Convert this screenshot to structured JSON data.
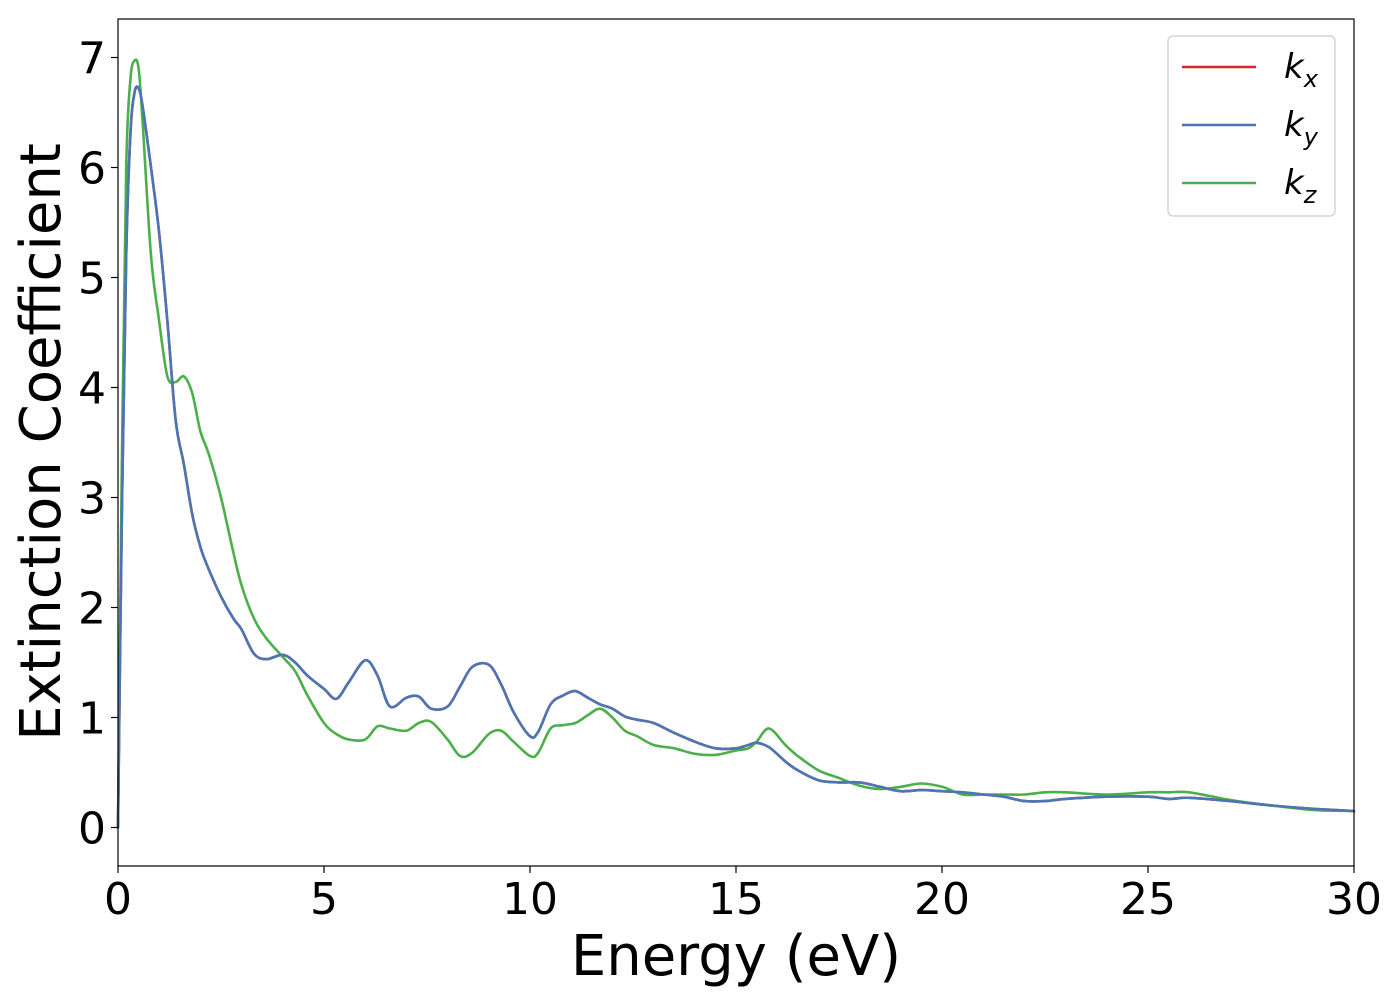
{
  "chart_data": {
    "type": "line",
    "xlabel": "Energy (eV)",
    "ylabel": "Extinction Coefficient",
    "xlim": [
      0,
      30
    ],
    "ylim": [
      -0.35,
      7.35
    ],
    "xticks": [
      0,
      5,
      10,
      15,
      20,
      25,
      30
    ],
    "yticks": [
      0,
      1,
      2,
      3,
      4,
      5,
      6,
      7
    ],
    "grid": false,
    "legend_position": "top-right",
    "series": [
      {
        "name": "k",
        "subscript": "x",
        "color": "#d62728",
        "x": [
          0,
          0.1,
          0.2,
          0.3,
          0.4,
          0.5,
          0.6,
          0.8,
          1.0,
          1.2,
          1.4,
          1.6,
          1.8,
          2.0,
          2.2,
          2.5,
          2.8,
          3.0,
          3.3,
          3.6,
          4.0,
          4.3,
          4.6,
          5.0,
          5.3,
          5.6,
          6.0,
          6.3,
          6.6,
          7.0,
          7.3,
          7.6,
          8.0,
          8.3,
          8.6,
          9.0,
          9.3,
          9.6,
          10.0,
          10.2,
          10.5,
          10.8,
          11.1,
          11.4,
          11.7,
          12.0,
          12.3,
          12.6,
          13.0,
          13.5,
          14.0,
          14.5,
          15.0,
          15.3,
          15.5,
          15.8,
          16.2,
          16.5,
          17.0,
          17.5,
          18.0,
          18.5,
          19.0,
          19.5,
          20.0,
          20.5,
          21.0,
          21.5,
          22.0,
          22.5,
          23.0,
          24.0,
          25.0,
          25.5,
          26.0,
          27.0,
          28.0,
          29.0,
          30.0
        ],
        "y": [
          0.0,
          3.0,
          5.2,
          6.3,
          6.68,
          6.72,
          6.55,
          6.0,
          5.4,
          4.6,
          3.7,
          3.3,
          2.85,
          2.55,
          2.35,
          2.1,
          1.9,
          1.8,
          1.58,
          1.53,
          1.57,
          1.5,
          1.38,
          1.26,
          1.17,
          1.32,
          1.52,
          1.38,
          1.1,
          1.18,
          1.19,
          1.08,
          1.1,
          1.28,
          1.46,
          1.48,
          1.3,
          1.05,
          0.83,
          0.87,
          1.12,
          1.2,
          1.24,
          1.18,
          1.12,
          1.08,
          1.01,
          0.98,
          0.95,
          0.86,
          0.78,
          0.72,
          0.72,
          0.75,
          0.77,
          0.73,
          0.6,
          0.52,
          0.43,
          0.41,
          0.41,
          0.37,
          0.33,
          0.34,
          0.33,
          0.32,
          0.3,
          0.28,
          0.24,
          0.24,
          0.26,
          0.28,
          0.28,
          0.26,
          0.27,
          0.24,
          0.2,
          0.17,
          0.15
        ]
      },
      {
        "name": "k",
        "subscript": "y",
        "color": "#4a77b4",
        "x": [
          0,
          0.1,
          0.2,
          0.3,
          0.4,
          0.5,
          0.6,
          0.8,
          1.0,
          1.2,
          1.4,
          1.6,
          1.8,
          2.0,
          2.2,
          2.5,
          2.8,
          3.0,
          3.3,
          3.6,
          4.0,
          4.3,
          4.6,
          5.0,
          5.3,
          5.6,
          6.0,
          6.3,
          6.6,
          7.0,
          7.3,
          7.6,
          8.0,
          8.3,
          8.6,
          9.0,
          9.3,
          9.6,
          10.0,
          10.2,
          10.5,
          10.8,
          11.1,
          11.4,
          11.7,
          12.0,
          12.3,
          12.6,
          13.0,
          13.5,
          14.0,
          14.5,
          15.0,
          15.3,
          15.5,
          15.8,
          16.2,
          16.5,
          17.0,
          17.5,
          18.0,
          18.5,
          19.0,
          19.5,
          20.0,
          20.5,
          21.0,
          21.5,
          22.0,
          22.5,
          23.0,
          24.0,
          25.0,
          25.5,
          26.0,
          27.0,
          28.0,
          29.0,
          30.0
        ],
        "y": [
          0.0,
          3.0,
          5.2,
          6.3,
          6.68,
          6.72,
          6.55,
          6.0,
          5.4,
          4.6,
          3.7,
          3.3,
          2.85,
          2.55,
          2.35,
          2.1,
          1.9,
          1.8,
          1.58,
          1.53,
          1.57,
          1.5,
          1.38,
          1.26,
          1.17,
          1.32,
          1.52,
          1.38,
          1.1,
          1.18,
          1.19,
          1.08,
          1.1,
          1.28,
          1.46,
          1.48,
          1.3,
          1.05,
          0.83,
          0.87,
          1.12,
          1.2,
          1.24,
          1.18,
          1.12,
          1.08,
          1.01,
          0.98,
          0.95,
          0.86,
          0.78,
          0.72,
          0.72,
          0.75,
          0.77,
          0.73,
          0.6,
          0.52,
          0.43,
          0.41,
          0.41,
          0.37,
          0.33,
          0.34,
          0.33,
          0.32,
          0.3,
          0.28,
          0.24,
          0.24,
          0.26,
          0.28,
          0.28,
          0.26,
          0.27,
          0.24,
          0.2,
          0.17,
          0.15
        ]
      },
      {
        "name": "k",
        "subscript": "z",
        "color": "#4daf4a",
        "x": [
          0,
          0.1,
          0.2,
          0.3,
          0.4,
          0.5,
          0.6,
          0.8,
          1.0,
          1.2,
          1.4,
          1.6,
          1.8,
          2.0,
          2.2,
          2.5,
          2.8,
          3.0,
          3.3,
          3.6,
          4.0,
          4.3,
          4.6,
          5.0,
          5.3,
          5.6,
          6.0,
          6.3,
          6.6,
          7.0,
          7.3,
          7.6,
          8.0,
          8.3,
          8.6,
          9.0,
          9.3,
          9.6,
          10.0,
          10.2,
          10.5,
          10.8,
          11.1,
          11.4,
          11.7,
          12.0,
          12.3,
          12.6,
          13.0,
          13.5,
          14.0,
          14.5,
          15.0,
          15.3,
          15.5,
          15.8,
          16.2,
          16.5,
          17.0,
          17.5,
          18.0,
          18.5,
          19.0,
          19.5,
          20.0,
          20.5,
          21.0,
          21.5,
          22.0,
          22.5,
          23.0,
          24.0,
          25.0,
          25.5,
          26.0,
          27.0,
          28.0,
          29.0,
          30.0
        ],
        "y": [
          0.0,
          3.5,
          6.0,
          6.8,
          6.97,
          6.9,
          6.4,
          5.2,
          4.6,
          4.1,
          4.05,
          4.1,
          3.95,
          3.6,
          3.4,
          3.0,
          2.5,
          2.2,
          1.9,
          1.72,
          1.55,
          1.42,
          1.2,
          0.95,
          0.85,
          0.8,
          0.8,
          0.92,
          0.9,
          0.88,
          0.95,
          0.96,
          0.8,
          0.65,
          0.68,
          0.85,
          0.88,
          0.78,
          0.65,
          0.68,
          0.9,
          0.93,
          0.95,
          1.02,
          1.08,
          1.0,
          0.88,
          0.83,
          0.75,
          0.72,
          0.67,
          0.66,
          0.7,
          0.72,
          0.78,
          0.9,
          0.75,
          0.65,
          0.52,
          0.45,
          0.38,
          0.35,
          0.37,
          0.4,
          0.37,
          0.3,
          0.3,
          0.3,
          0.3,
          0.32,
          0.32,
          0.3,
          0.32,
          0.32,
          0.32,
          0.25,
          0.2,
          0.16,
          0.15
        ]
      }
    ]
  }
}
